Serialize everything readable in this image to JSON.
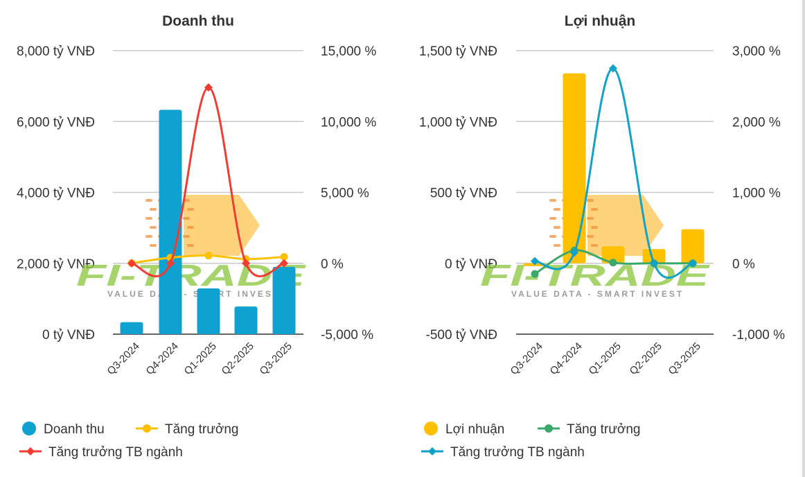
{
  "chart_data": [
    {
      "type": "bar",
      "title": "Doanh thu",
      "categories": [
        "Q3-2024",
        "Q4-2024",
        "Q1-2025",
        "Q2-2025",
        "Q3-2025"
      ],
      "ylim_left": [
        0,
        8000
      ],
      "ylim_right": [
        -5000,
        15000
      ],
      "yticks_left": [
        "0 tỷ VNĐ",
        "2,000 tỷ VNĐ",
        "4,000 tỷ VNĐ",
        "6,000 tỷ VNĐ",
        "8,000 tỷ VNĐ"
      ],
      "yticks_left_values": [
        0,
        2000,
        4000,
        6000,
        8000
      ],
      "yticks_right": [
        "-5,000 %",
        "0 %",
        "5,000 %",
        "10,000 %",
        "15,000 %"
      ],
      "yticks_right_values": [
        -5000,
        0,
        5000,
        10000,
        15000
      ],
      "series": [
        {
          "name": "Doanh thu",
          "kind": "bar",
          "axis": "left",
          "color": "#0fa1cf",
          "values": [
            340,
            6330,
            1290,
            780,
            1900
          ]
        },
        {
          "name": "Tăng trưởng",
          "kind": "line",
          "marker": "circle",
          "axis": "right",
          "color": "#ffc000",
          "values": [
            10,
            400,
            550,
            300,
            450
          ]
        },
        {
          "name": "Tăng trưởng TB ngành",
          "kind": "line",
          "marker": "diamond",
          "axis": "right",
          "color": "#f03c32",
          "values": [
            0,
            0,
            12400,
            0,
            0
          ]
        }
      ],
      "legend": [
        "Doanh thu",
        "Tăng trưởng",
        "Tăng trưởng TB ngành"
      ],
      "legend_position": "bottom-left"
    },
    {
      "type": "bar",
      "title": "Lợi nhuận",
      "categories": [
        "Q3-2024",
        "Q4-2024",
        "Q1-2025",
        "Q2-2025",
        "Q3-2025"
      ],
      "ylim_left": [
        -500,
        1500
      ],
      "ylim_right": [
        -1000,
        3000
      ],
      "yticks_left": [
        "-500 tỷ VNĐ",
        "0 tỷ VNĐ",
        "500 tỷ VNĐ",
        "1,000 tỷ VNĐ",
        "1,500 tỷ VNĐ"
      ],
      "yticks_left_values": [
        -500,
        0,
        500,
        1000,
        1500
      ],
      "yticks_right": [
        "-1,000 %",
        "0 %",
        "1,000 %",
        "2,000 %",
        "3,000 %"
      ],
      "yticks_right_values": [
        -1000,
        0,
        1000,
        2000,
        3000
      ],
      "series": [
        {
          "name": "Lợi nhuận",
          "kind": "bar",
          "axis": "left",
          "color": "#ffc000",
          "values": [
            -20,
            1340,
            120,
            100,
            240
          ]
        },
        {
          "name": "Tăng trưởng",
          "kind": "line",
          "marker": "circle",
          "axis": "right",
          "color": "#3aa86b",
          "values": [
            -150,
            180,
            10,
            0,
            0
          ]
        },
        {
          "name": "Tăng trưởng TB ngành",
          "kind": "line",
          "marker": "diamond",
          "axis": "right",
          "color": "#12a2c7",
          "values": [
            30,
            150,
            2750,
            0,
            0
          ]
        }
      ],
      "legend": [
        "Lợi nhuận",
        "Tăng trưởng",
        "Tăng trưởng TB ngành"
      ],
      "legend_position": "bottom-left"
    }
  ],
  "watermark": {
    "logo": "FI-TRADE",
    "tagline": "VALUE DATA - SMART INVEST"
  }
}
